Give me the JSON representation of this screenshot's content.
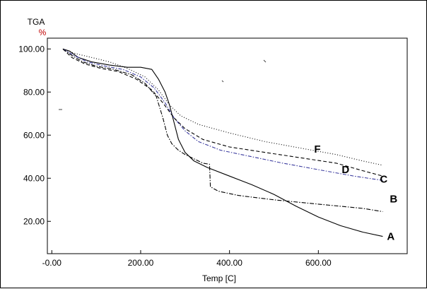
{
  "chart_data": {
    "type": "line",
    "ylabel": "TGA",
    "yunit": "%",
    "xlabel": "Temp  [C]",
    "xlim": [
      -10,
      800
    ],
    "ylim": [
      5,
      105
    ],
    "x_ticks": [
      {
        "value": 0,
        "label": "-0.00"
      },
      {
        "value": 200,
        "label": "200.00"
      },
      {
        "value": 400,
        "label": "400.00"
      },
      {
        "value": 600,
        "label": "600.00"
      }
    ],
    "y_ticks": [
      {
        "value": 20,
        "label": "20.00"
      },
      {
        "value": 40,
        "label": "40.00"
      },
      {
        "value": 60,
        "label": "60.00"
      },
      {
        "value": 80,
        "label": "80.00"
      },
      {
        "value": 100,
        "label": "100.00"
      }
    ],
    "grid": false,
    "series": [
      {
        "name": "A",
        "color": "#000000",
        "dash": "",
        "x": [
          25,
          40,
          60,
          90,
          130,
          170,
          200,
          225,
          240,
          255,
          265,
          275,
          285,
          300,
          320,
          350,
          400,
          450,
          500,
          550,
          600,
          650,
          700,
          745
        ],
        "y": [
          100,
          99,
          96,
          94,
          92.5,
          91.5,
          91.5,
          90.5,
          86,
          80,
          74,
          66,
          58,
          52,
          48,
          45,
          41,
          37,
          32.5,
          27,
          22,
          18,
          15,
          13
        ]
      },
      {
        "name": "B",
        "color": "#000000",
        "dash": "6 2 1.5 2",
        "x": [
          25,
          45,
          70,
          100,
          140,
          180,
          210,
          235,
          250,
          260,
          270,
          285,
          300,
          320,
          340,
          355,
          357,
          375,
          420,
          500,
          600,
          700,
          745
        ],
        "y": [
          100,
          97,
          94,
          92,
          90.5,
          88,
          84,
          78,
          68,
          60,
          56,
          53,
          51,
          49,
          47,
          46.5,
          36,
          34,
          32,
          30,
          28,
          26,
          24.5
        ]
      },
      {
        "name": "C",
        "color": "#3a3a9e",
        "dash": "5 2 1.5 2",
        "x": [
          25,
          50,
          80,
          120,
          160,
          200,
          230,
          255,
          275,
          300,
          330,
          380,
          450,
          520,
          600,
          680,
          745
        ],
        "y": [
          100,
          97,
          94,
          92,
          90.5,
          87,
          82,
          75,
          68,
          62,
          57,
          53,
          50,
          47,
          44,
          41,
          39
        ]
      },
      {
        "name": "D",
        "color": "#000000",
        "dash": "5 3",
        "x": [
          25,
          45,
          75,
          110,
          150,
          190,
          225,
          250,
          275,
          300,
          340,
          400,
          480,
          560,
          640,
          700,
          745
        ],
        "y": [
          100,
          96,
          93,
          91,
          89.5,
          86,
          81,
          75,
          68,
          63,
          58,
          54.5,
          52,
          49.5,
          47,
          43.5,
          41
        ]
      },
      {
        "name": "F",
        "color": "#000000",
        "dash": "1 2.5",
        "x": [
          25,
          50,
          90,
          130,
          170,
          210,
          240,
          265,
          290,
          330,
          400,
          480,
          560,
          640,
          700,
          745
        ],
        "y": [
          100,
          98,
          96,
          94,
          91,
          87,
          81,
          74,
          69,
          65,
          61,
          57,
          54,
          51,
          48,
          46
        ]
      }
    ],
    "curve_labels": [
      {
        "text": "A",
        "series": "A"
      },
      {
        "text": "B",
        "series": "B"
      },
      {
        "text": "C",
        "series": "C"
      },
      {
        "text": "D",
        "series": "D"
      },
      {
        "text": "F",
        "series": "F"
      }
    ]
  }
}
